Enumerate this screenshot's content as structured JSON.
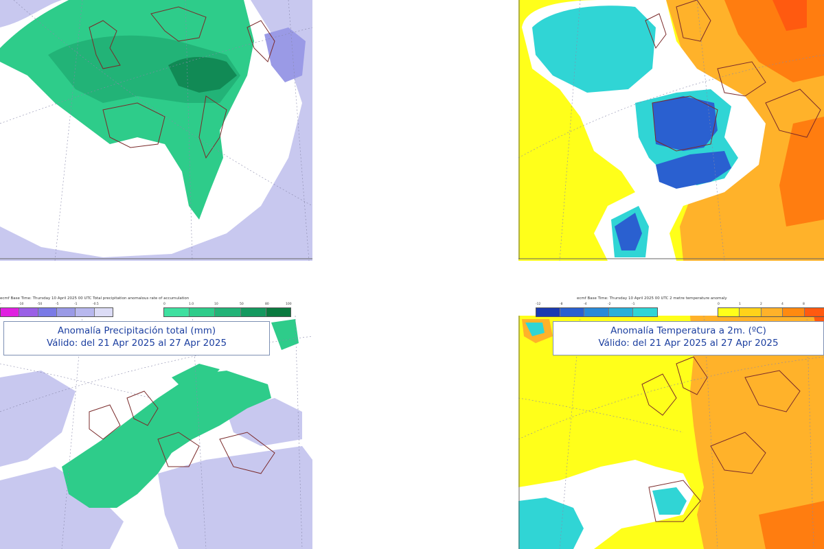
{
  "colors": {
    "precip_dry": "#c8c8ef",
    "precip_wet_light": "#2ecc8a",
    "precip_wet_mid": "#22b377",
    "precip_wet_dark": "#118a55",
    "temp_warm_light": "#ffff1a",
    "temp_warm_mid": "#ffb22a",
    "temp_warm_dark": "#ff7d10",
    "temp_cold_light": "#30d5d5",
    "temp_cold_dark": "#2a60d0",
    "coast": "#7a2a2a",
    "grid": "#8888aa"
  },
  "panels": {
    "precip_week2": {
      "header": "ecmf  Base Time: Thursday 10 April 2025 00 UTC  Total precipitation anomalous rate of accumulation",
      "legend_neg_ticks": [
        "-",
        "-10",
        "-50",
        "-5",
        "-1",
        "-0.5"
      ],
      "legend_pos_ticks": [
        "0",
        "1.0",
        "10",
        "50",
        "80",
        "100"
      ],
      "title_line1": "Anomalía Precipitación total (mm)",
      "title_line2": "Válido: del 21 Apr 2025 al 27 Apr 2025"
    },
    "temp_week2": {
      "header": "ecmf  Base Time: Thursday 10 April 2025 00 UTC  2 metre temperature anomaly",
      "legend_neg_ticks": [
        "-12",
        "-8",
        "-4",
        "-2",
        "-1"
      ],
      "legend_pos_ticks": [
        "0",
        "1",
        "2",
        "4",
        "8"
      ],
      "title_line1": "Anomalía Temperatura a 2m. (ºC)",
      "title_line2": "Válido: del 21 Apr 2025 al 27 Apr 2025"
    }
  }
}
